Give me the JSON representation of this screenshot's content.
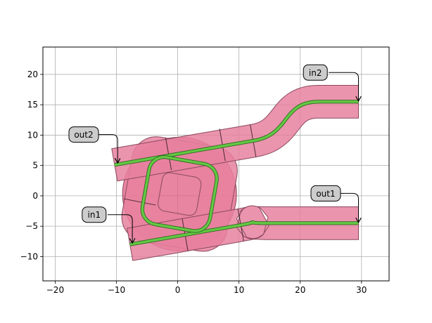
{
  "chart_data": {
    "type": "diagram",
    "xlim": [
      -22,
      34.5
    ],
    "ylim": [
      -14,
      24.5
    ],
    "x_ticks": [
      -20,
      -10,
      0,
      10,
      20,
      30
    ],
    "y_ticks": [
      -10,
      -5,
      0,
      5,
      10,
      15,
      20
    ],
    "grid": true,
    "colors": {
      "cladding": "#e8819f",
      "ring_disk": "#e05c82",
      "core": "#63c844",
      "edge": "#8a4a5e",
      "label_box": "#cccccc"
    },
    "ports": [
      {
        "label": "in2",
        "x": 29.5,
        "y": 15.5
      },
      {
        "label": "out2",
        "x": -9.8,
        "y": 5.3
      },
      {
        "label": "out1",
        "x": 29.5,
        "y": -4.5
      },
      {
        "label": "in1",
        "x": -7.4,
        "y": -7.9
      }
    ]
  }
}
